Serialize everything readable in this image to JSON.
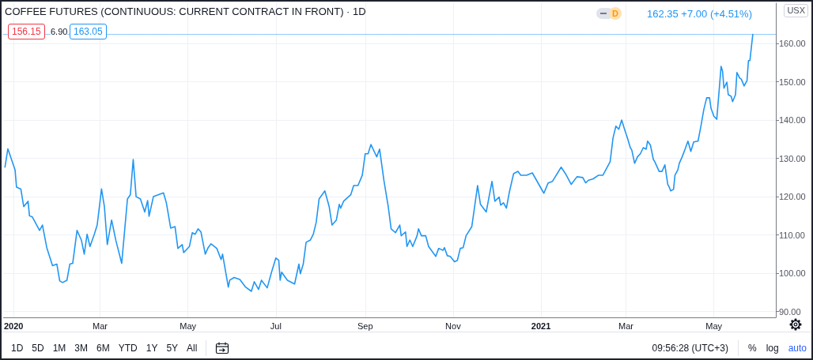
{
  "chart_data": {
    "type": "line",
    "title": "COFFEE FUTURES (CONTINUOUS: CURRENT CONTRACT IN FRONT) · 1D",
    "ylabel": "USX",
    "annotations": [
      "162.35 +7.00 (+4.51%)",
      "156.15",
      "6.90",
      "163.05",
      "D",
      "1D",
      "5D",
      "1M",
      "3M",
      "6M",
      "YTD",
      "1Y",
      "5Y",
      "All",
      "09:56:28 (UTC+3)",
      "%",
      "log",
      "auto"
    ],
    "x": [
      "2019-12-26",
      "2019-12-28",
      "2020-01-02",
      "2020-01-03",
      "2020-01-06",
      "2020-01-08",
      "2020-01-11",
      "2020-01-12",
      "2020-01-14",
      "2020-01-19",
      "2020-01-21",
      "2020-01-24",
      "2020-01-28",
      "2020-01-31",
      "2020-02-02",
      "2020-02-04",
      "2020-02-07",
      "2020-02-09",
      "2020-02-11",
      "2020-02-14",
      "2020-02-17",
      "2020-02-19",
      "2020-02-21",
      "2020-02-23",
      "2020-02-26",
      "2020-02-28",
      "2020-03-02",
      "2020-03-04",
      "2020-03-06",
      "2020-03-09",
      "2020-03-12",
      "2020-03-16",
      "2020-03-20",
      "2020-03-22",
      "2020-03-24",
      "2020-03-26",
      "2020-03-29",
      "2020-04-01",
      "2020-04-03",
      "2020-04-04",
      "2020-04-07",
      "2020-04-14",
      "2020-04-16",
      "2020-04-19",
      "2020-04-22",
      "2020-04-24",
      "2020-04-27",
      "2020-04-28",
      "2020-05-02",
      "2020-05-04",
      "2020-05-06",
      "2020-05-08",
      "2020-05-10",
      "2020-05-13",
      "2020-05-15",
      "2020-05-17",
      "2020-05-21",
      "2020-05-24",
      "2020-05-25",
      "2020-05-29",
      "2020-05-30",
      "2020-06-02",
      "2020-06-06",
      "2020-06-10",
      "2020-06-14",
      "2020-06-16",
      "2020-06-19",
      "2020-06-21",
      "2020-06-25",
      "2020-06-28",
      "2020-07-01",
      "2020-07-03",
      "2020-07-04",
      "2020-07-05",
      "2020-07-09",
      "2020-07-14",
      "2020-07-17",
      "2020-07-18",
      "2020-07-20",
      "2020-07-22",
      "2020-07-25",
      "2020-07-27",
      "2020-07-29",
      "2020-07-31",
      "2020-08-04",
      "2020-08-07",
      "2020-08-09",
      "2020-08-12",
      "2020-08-14",
      "2020-08-15",
      "2020-08-17",
      "2020-08-22",
      "2020-08-24",
      "2020-08-27",
      "2020-08-30",
      "2020-09-01",
      "2020-09-03",
      "2020-09-05",
      "2020-09-08",
      "2020-09-09",
      "2020-09-11",
      "2020-09-14",
      "2020-09-17",
      "2020-09-19",
      "2020-09-22",
      "2020-09-25",
      "2020-09-26",
      "2020-09-29",
      "2020-09-30",
      "2020-10-02",
      "2020-10-04",
      "2020-10-07",
      "2020-10-08",
      "2020-10-10",
      "2020-10-13",
      "2020-10-15",
      "2020-10-20",
      "2020-10-22",
      "2020-10-25",
      "2020-10-26",
      "2020-10-28",
      "2020-10-30",
      "2020-11-02",
      "2020-11-04",
      "2020-11-06",
      "2020-11-08",
      "2020-11-10",
      "2020-11-14",
      "2020-11-18",
      "2020-11-20",
      "2020-11-24",
      "2020-11-28",
      "2020-11-30",
      "2020-12-03",
      "2020-12-04",
      "2020-12-06",
      "2020-12-08",
      "2020-12-10",
      "2020-12-13",
      "2020-12-16",
      "2020-12-18",
      "2020-12-22",
      "2020-12-26",
      "2021-01-03",
      "2021-01-06",
      "2021-01-09",
      "2021-01-15",
      "2021-01-18",
      "2021-01-22",
      "2021-01-26",
      "2021-01-30",
      "2021-02-01",
      "2021-02-03",
      "2021-02-06",
      "2021-02-10",
      "2021-02-13",
      "2021-02-16",
      "2021-02-18",
      "2021-02-20",
      "2021-02-22",
      "2021-02-24",
      "2021-02-26",
      "2021-02-28",
      "2021-03-02",
      "2021-03-04",
      "2021-03-05",
      "2021-03-07",
      "2021-03-09",
      "2021-03-11",
      "2021-03-13",
      "2021-03-15",
      "2021-03-16",
      "2021-03-18",
      "2021-03-20",
      "2021-03-21",
      "2021-03-24",
      "2021-03-26",
      "2021-03-28",
      "2021-03-30",
      "2021-03-31",
      "2021-04-01",
      "2021-04-03",
      "2021-04-04",
      "2021-04-06",
      "2021-04-07",
      "2021-04-09",
      "2021-04-11",
      "2021-04-13",
      "2021-04-15",
      "2021-04-17",
      "2021-04-20",
      "2021-04-22",
      "2021-04-24",
      "2021-04-26",
      "2021-04-28",
      "2021-04-29",
      "2021-05-01",
      "2021-05-03",
      "2021-05-05",
      "2021-05-06",
      "2021-05-07",
      "2021-05-08",
      "2021-05-10",
      "2021-05-11",
      "2021-05-13",
      "2021-05-14",
      "2021-05-16",
      "2021-05-17",
      "2021-05-19",
      "2021-05-20",
      "2021-05-22",
      "2021-05-24",
      "2021-05-25",
      "2021-05-26",
      "2021-05-28"
    ],
    "series": [
      {
        "color": "#2196f3",
        "values": [
          127.7,
          132.5,
          127,
          122.5,
          122,
          117.4,
          118.8,
          115,
          114.7,
          111.2,
          112.6,
          106.7,
          102,
          102.4,
          98,
          97.6,
          98.2,
          102.4,
          102.6,
          111.2,
          108.7,
          105,
          110.2,
          107,
          110.2,
          112.6,
          122,
          117.4,
          107.5,
          113.9,
          108.5,
          102.6,
          119.4,
          120.5,
          129.7,
          120,
          119.4,
          116,
          119,
          114.9,
          120,
          121,
          118.4,
          111.8,
          112.2,
          106.5,
          107.5,
          105.4,
          107,
          110.6,
          110.2,
          111.6,
          110.8,
          105,
          106.7,
          107.7,
          106.5,
          103.6,
          105,
          96.4,
          98.2,
          98.9,
          98.4,
          96.4,
          95.3,
          97.8,
          95.8,
          98.2,
          96.2,
          100.3,
          104,
          103.4,
          98.2,
          100.3,
          98.2,
          97.2,
          102.4,
          99.9,
          102.4,
          108.1,
          108.7,
          110.2,
          113.3,
          119.4,
          121.5,
          117.4,
          112.6,
          113.9,
          118,
          117,
          118.8,
          120.5,
          122.9,
          122.9,
          125.6,
          131.2,
          131.2,
          133.6,
          131.2,
          130.4,
          132.4,
          124.2,
          117.4,
          111.6,
          110.6,
          112.6,
          109.8,
          110.8,
          107,
          108.7,
          107,
          109.8,
          111.6,
          109.8,
          109.8,
          107,
          104.4,
          106.5,
          106,
          106.7,
          104.6,
          104.4,
          103,
          103.4,
          106.5,
          106.7,
          109.8,
          112.2,
          122.9,
          118,
          116,
          124,
          118.8,
          119.9,
          117.8,
          118.4,
          117,
          121.1,
          126,
          126.6,
          125.6,
          125.6,
          126.2,
          120.9,
          123.6,
          124,
          127.7,
          126,
          123.2,
          125.2,
          125,
          123.6,
          124.3,
          124.6,
          125.6,
          125.6,
          127.7,
          129.1,
          135.3,
          138.4,
          137.6,
          140,
          137.6,
          135.3,
          132.8,
          132.2,
          128.7,
          130.4,
          131.2,
          132.8,
          132.4,
          134.5,
          133.4,
          129.7,
          129.1,
          126.6,
          126.6,
          128.3,
          123.2,
          122.5,
          121.5,
          121.9,
          125.6,
          127,
          128.7,
          130.4,
          132.4,
          134.5,
          131.8,
          134.3,
          134.5,
          138.4,
          142.7,
          145.8,
          145.8,
          143.1,
          141,
          140.2,
          149.3,
          154,
          152.8,
          148.3,
          149.9,
          146.6,
          146.2,
          144.8,
          146.6,
          152.4,
          150.9,
          150.7,
          148.9,
          150.3,
          155.5,
          155.5,
          162.35
        ]
      }
    ],
    "xlim": [
      "2019-12-25",
      "2021-06-13"
    ],
    "xticks": [
      {
        "value": "2020-01",
        "label": "2020"
      },
      {
        "value": "2020-03",
        "label": "Mar"
      },
      {
        "value": "2020-05",
        "label": "May"
      },
      {
        "value": "2020-07",
        "label": "Jul"
      },
      {
        "value": "2020-09",
        "label": "Sep"
      },
      {
        "value": "2020-11",
        "label": "Nov"
      },
      {
        "value": "2021-01",
        "label": "2021"
      },
      {
        "value": "2021-03",
        "label": "Mar"
      },
      {
        "value": "2021-05",
        "label": "May"
      }
    ],
    "ylim": [
      88.5,
      170.5
    ],
    "yticks": [
      {
        "value": 90,
        "label": "90.00"
      },
      {
        "value": 100,
        "label": "100.00"
      },
      {
        "value": 110,
        "label": "110.00"
      },
      {
        "value": 120,
        "label": "120.00"
      },
      {
        "value": 130,
        "label": "130.00"
      },
      {
        "value": 140,
        "label": "140.00"
      },
      {
        "value": 150,
        "label": "150.00"
      },
      {
        "value": 160,
        "label": "160.00"
      }
    ],
    "grid": true,
    "marker": "none",
    "line_style": "solid",
    "ref_lines": [
      {
        "axis": "y",
        "value": 162.35,
        "color": "#2196f3",
        "line_style": "dotted"
      }
    ]
  }
}
